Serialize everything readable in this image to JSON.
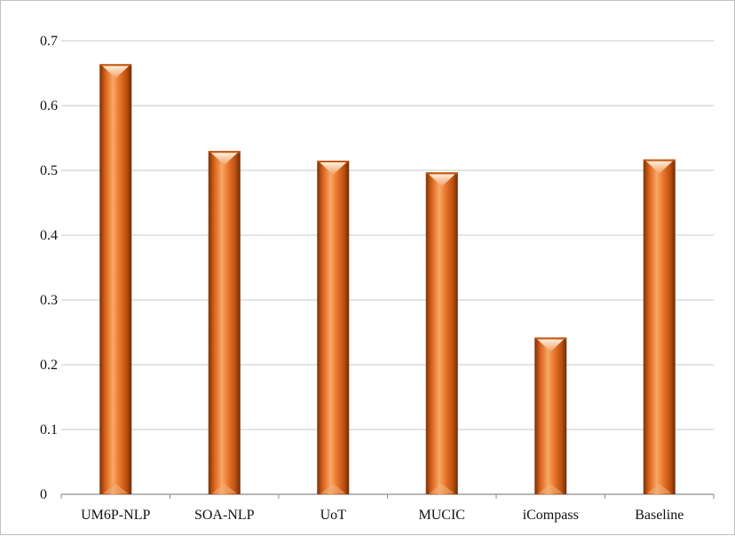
{
  "chart_data": {
    "type": "bar",
    "title": "",
    "xlabel": "",
    "ylabel": "",
    "categories": [
      "UM6P-NLP",
      "SOA-NLP",
      "UoT",
      "MUCIC",
      "iCompass",
      "Baseline"
    ],
    "values": [
      0.664,
      0.53,
      0.515,
      0.497,
      0.242,
      0.517
    ],
    "ylim": [
      0,
      0.7
    ],
    "yticks": [
      "0",
      "0.1",
      "0.2",
      "0.3",
      "0.4",
      "0.5",
      "0.6",
      "0.7"
    ],
    "grid": true,
    "legend": "none",
    "colors": {
      "bar_light": "#f6a15a",
      "bar_mid": "#e0691a",
      "bar_dark": "#8a3a08",
      "grid": "#c8c8c8",
      "axis": "#8c8c8c"
    }
  }
}
